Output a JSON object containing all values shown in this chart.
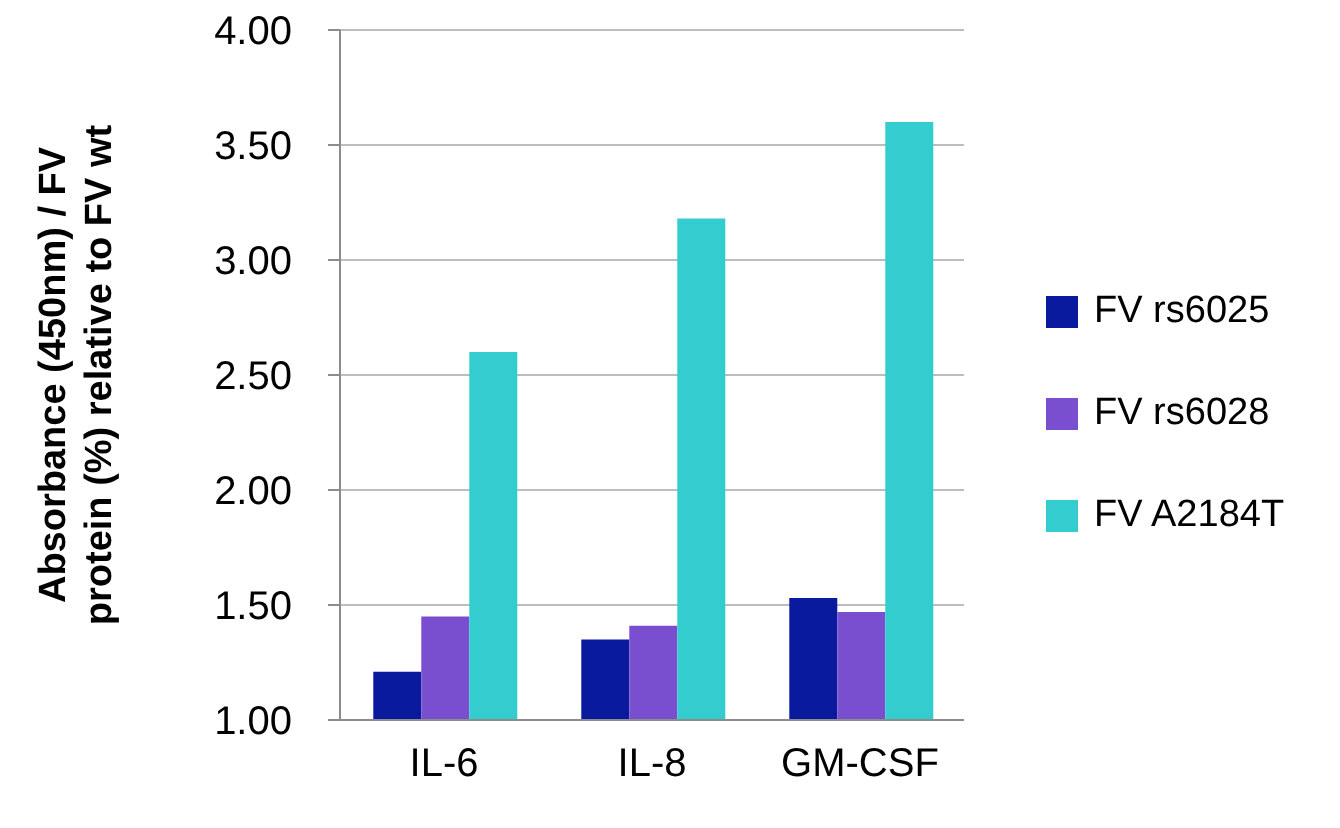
{
  "chart_data": {
    "type": "bar",
    "ylabel": "Absorbance (450nm) / FV protein (%) relative to FV wt",
    "categories": [
      "IL-6",
      "IL-8",
      "GM-CSF"
    ],
    "series": [
      {
        "name": "FV rs6025",
        "color": "#0a1a9e",
        "values": [
          1.21,
          1.35,
          1.53
        ]
      },
      {
        "name": "FV rs6028",
        "color": "#7a4fcf",
        "values": [
          1.45,
          1.41,
          1.47
        ]
      },
      {
        "name": "FV A2184T",
        "color": "#33cdd0",
        "values": [
          2.6,
          3.18,
          3.6
        ]
      }
    ],
    "ylim": [
      1,
      4
    ],
    "yticks": [
      {
        "value": 1,
        "label": "1.00"
      },
      {
        "value": 1.5,
        "label": "1.50"
      },
      {
        "value": 2,
        "label": "2.00"
      },
      {
        "value": 2.5,
        "label": "2.50"
      },
      {
        "value": 3,
        "label": "3.00"
      },
      {
        "value": 3.5,
        "label": "3.50"
      },
      {
        "value": 4,
        "label": "4.00"
      }
    ],
    "grid": "y",
    "legend": "right"
  }
}
